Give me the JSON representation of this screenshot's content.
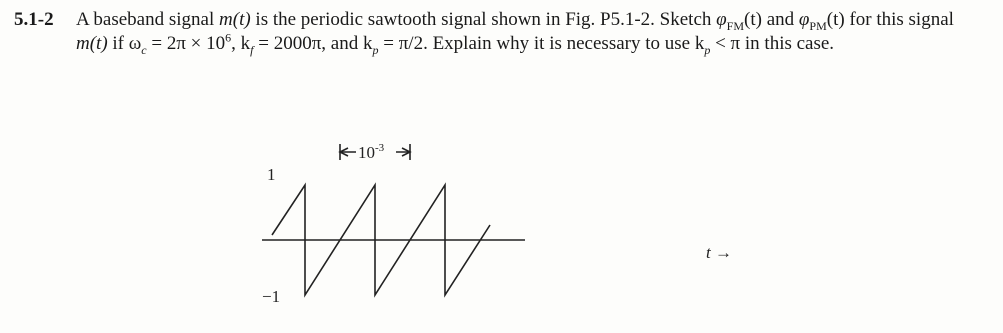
{
  "problem": {
    "number": "5.1-2",
    "parts": [
      "A baseband signal ",
      "m(t)",
      " is the periodic sawtooth signal shown in Fig. P5.1-2. Sketch ",
      "φ",
      "FM",
      "(t) and ",
      "φ",
      "PM",
      "(t) for this signal ",
      "m(t)",
      " if ω",
      "c",
      " = 2π × 10",
      "6",
      ", k",
      "f",
      " = 2000π, and k",
      "p",
      " = π/2. Explain why it is necessary to use k",
      "p",
      " < π in this case."
    ]
  },
  "figure": {
    "period_label": [
      "10",
      "-3"
    ],
    "y_top_label": "1",
    "y_bottom_label": "−1",
    "x_label": "t →"
  }
}
